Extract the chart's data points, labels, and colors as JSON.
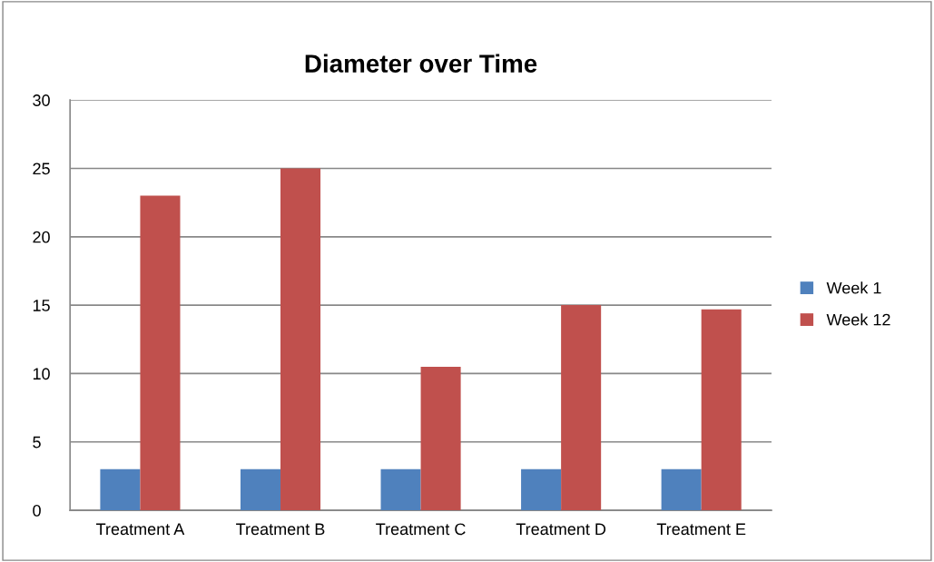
{
  "chart_data": {
    "type": "bar",
    "title": "Diameter over Time",
    "categories": [
      "Treatment A",
      "Treatment B",
      "Treatment C",
      "Treatment D",
      "Treatment E"
    ],
    "series": [
      {
        "name": "Week 1",
        "color": "#4f81bd",
        "values": [
          3,
          3,
          3,
          3,
          3
        ]
      },
      {
        "name": "Week 12",
        "color": "#c0504d",
        "values": [
          23,
          25,
          10.5,
          15,
          14.7
        ]
      }
    ],
    "ylim": [
      0,
      30
    ],
    "yticks": [
      0,
      5,
      10,
      15,
      20,
      25,
      30
    ],
    "grid": "y",
    "legend": "right"
  }
}
